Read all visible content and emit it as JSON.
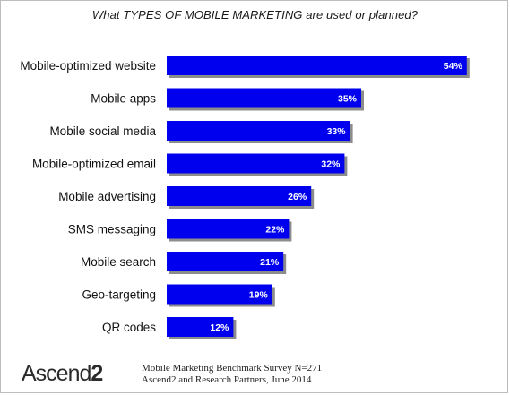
{
  "chart_data": {
    "type": "bar",
    "orientation": "horizontal",
    "title": "What TYPES OF MOBILE MARKETING are used or planned?",
    "xlabel": "",
    "ylabel": "",
    "categories": [
      "Mobile-optimized website",
      "Mobile apps",
      "Mobile social media",
      "Mobile-optimized email",
      "Mobile advertising",
      "SMS messaging",
      "Mobile search",
      "Geo-targeting",
      "QR codes"
    ],
    "values": [
      54,
      35,
      33,
      32,
      26,
      22,
      21,
      19,
      12
    ],
    "value_labels": [
      "54%",
      "35%",
      "33%",
      "32%",
      "26%",
      "22%",
      "21%",
      "19%",
      "12%"
    ],
    "xlim": [
      0,
      60
    ],
    "grid": false,
    "bar_color": "#0000ee"
  },
  "footer": {
    "logo_text": "Ascend",
    "logo_number": "2",
    "source_line1": "Mobile Marketing Benchmark Survey N=271",
    "source_line2": "Ascend2 and Research Partners, June 2014"
  }
}
